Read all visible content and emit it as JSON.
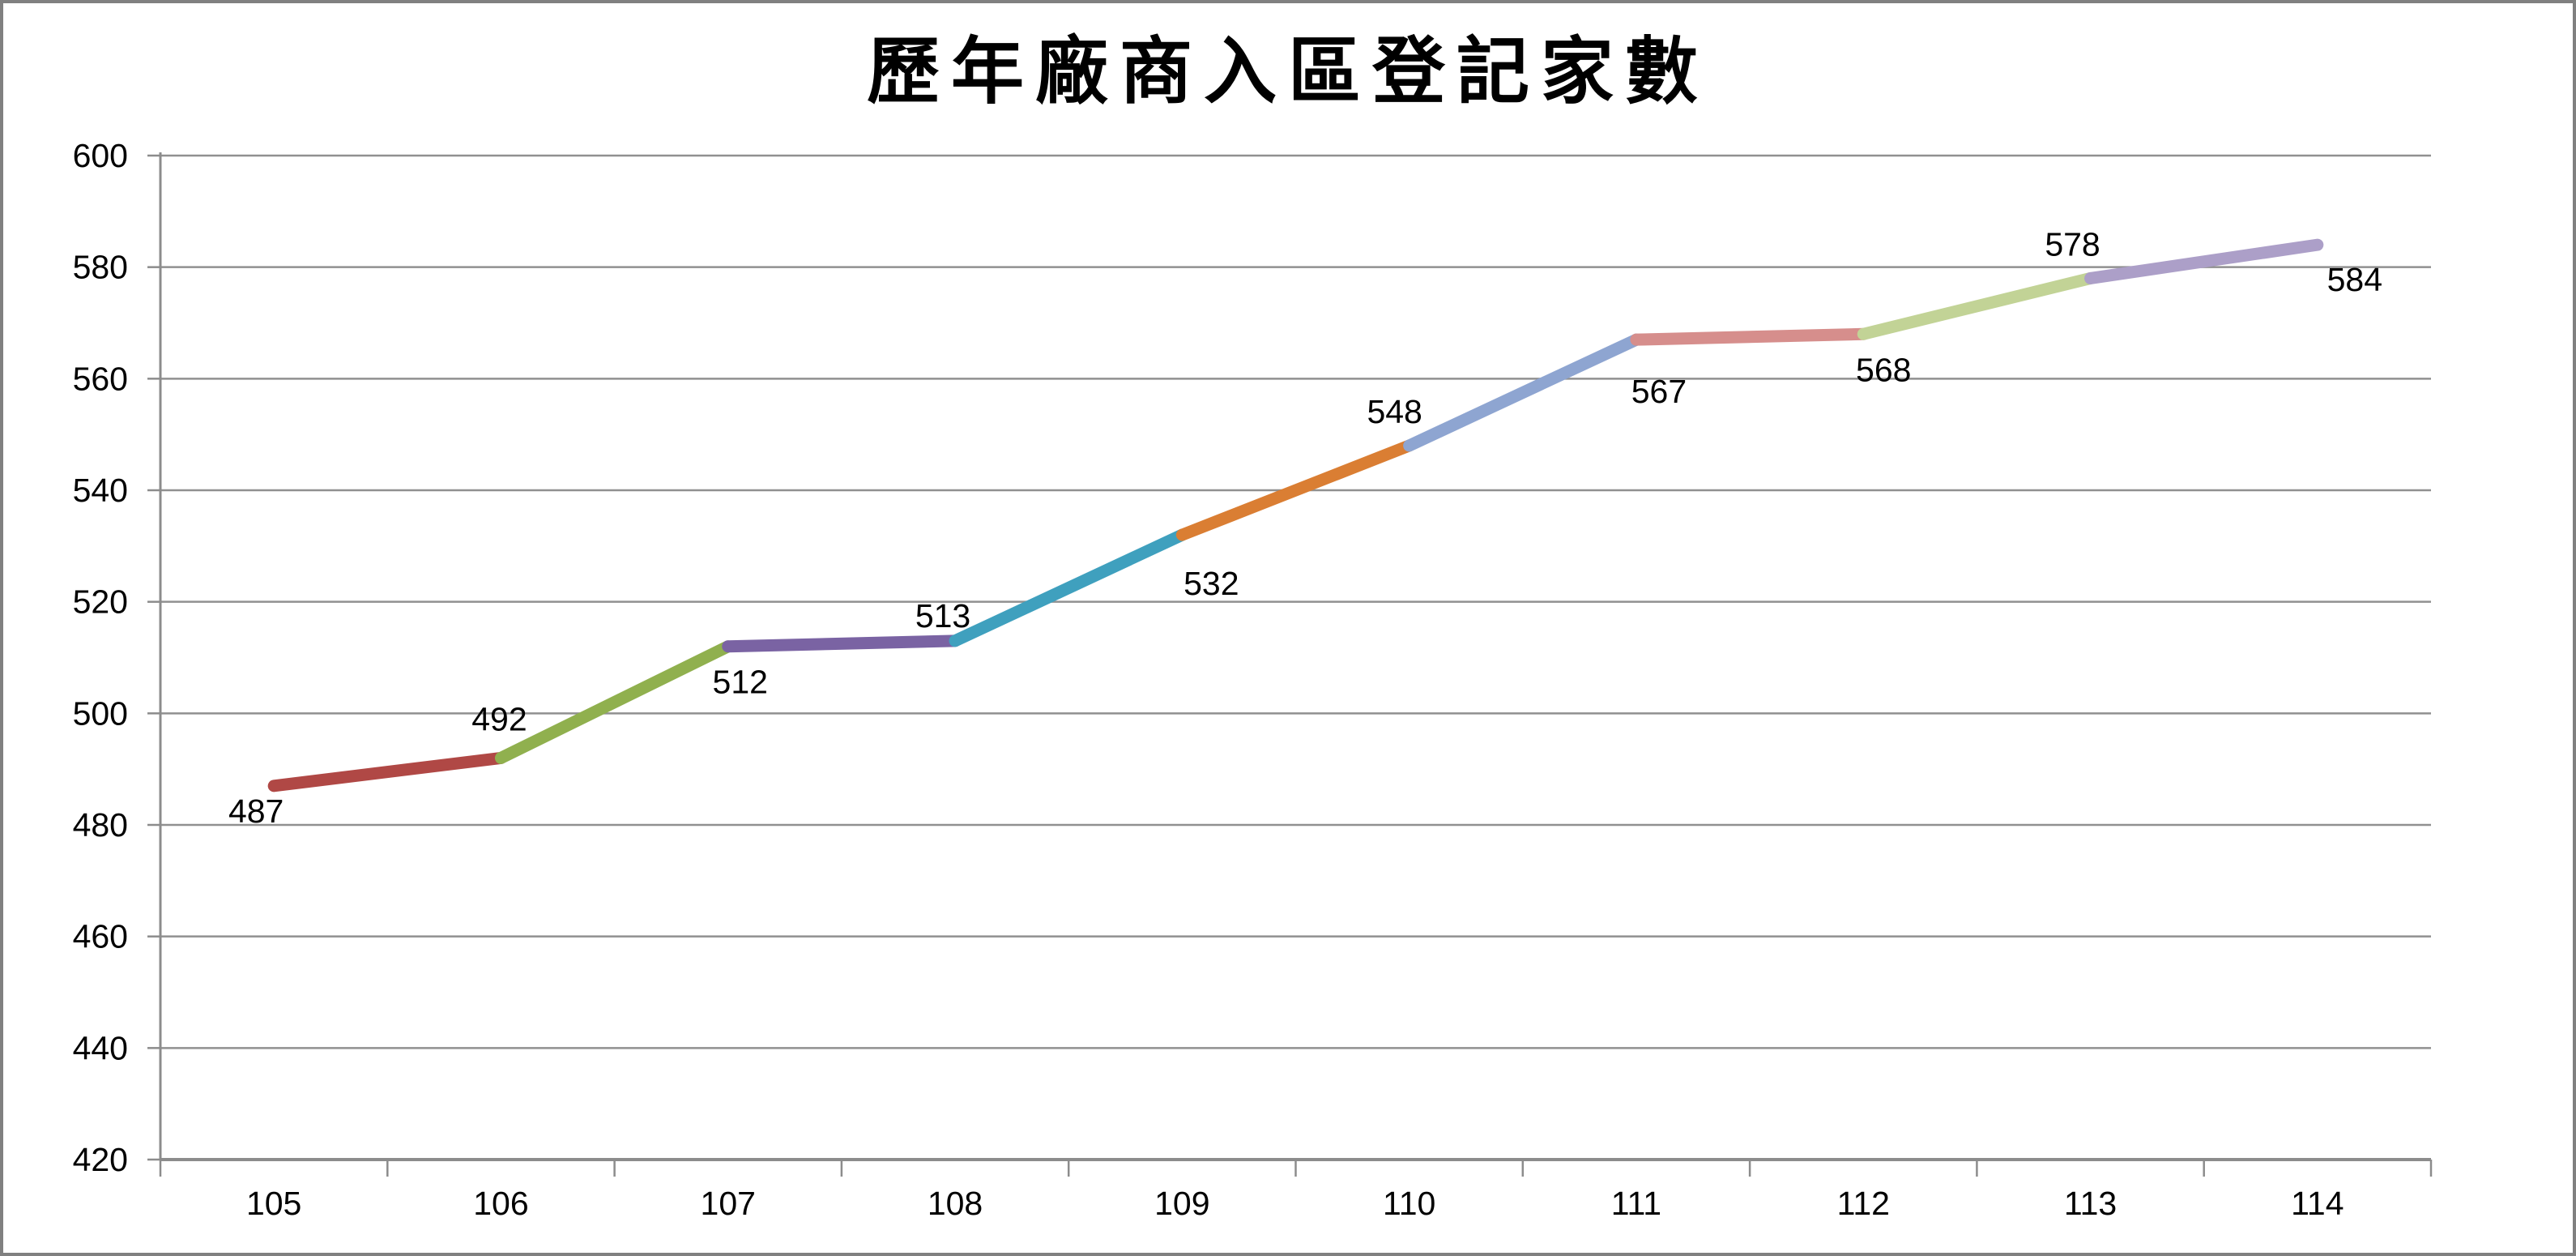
{
  "title": "歷年廠商入區登記家數",
  "chart_data": {
    "type": "line",
    "title": "歷年廠商入區登記家數",
    "categories": [
      "105",
      "106",
      "107",
      "108",
      "109",
      "110",
      "111",
      "112",
      "113",
      "114"
    ],
    "series": [
      {
        "name": "廠商入區登記家數",
        "values": [
          487,
          492,
          512,
          513,
          532,
          548,
          567,
          568,
          578,
          584
        ]
      }
    ],
    "data_labels": [
      "487",
      "492",
      "512",
      "513",
      "532",
      "548",
      "567",
      "568",
      "578",
      "584"
    ],
    "segment_colors": [
      "#B04845",
      "#90B04E",
      "#7A63A3",
      "#3FA0BE",
      "#DA7E33",
      "#8EA5D1",
      "#D68E8C",
      "#C2D396",
      "#AC9FC8"
    ],
    "yticks": [
      "600",
      "580",
      "560",
      "540",
      "520",
      "500",
      "480",
      "460",
      "440",
      "420"
    ],
    "ylim": [
      420,
      600
    ],
    "ytick_step": 20,
    "grid": true,
    "legend": false,
    "grid_color": "#909090",
    "axis_color": "#8C8C8C",
    "label_color": "#000000",
    "frame_color": "#808080",
    "background": "#FFFFFF"
  }
}
